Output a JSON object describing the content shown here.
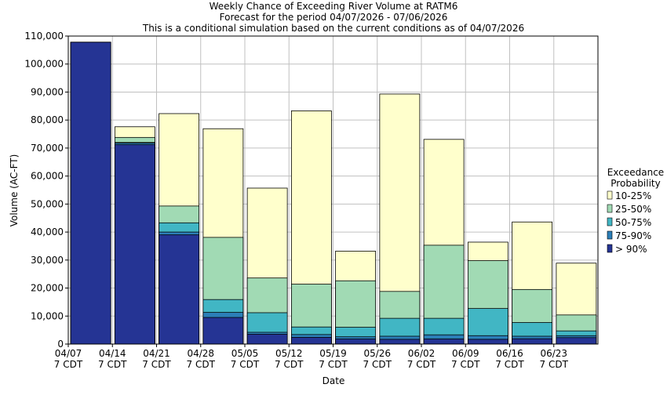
{
  "chart_data": {
    "type": "bar",
    "stacked": true,
    "title_lines": [
      "Weekly Chance of Exceeding River Volume at RATM6",
      "Forecast for the period 04/07/2026 - 07/06/2026",
      "This is a conditional simulation based on the current conditions as of 04/07/2026"
    ],
    "xlabel": "Date",
    "ylabel": "Volume (AC-FT)",
    "ylim": [
      0,
      110000
    ],
    "yticks": [
      0,
      10000,
      20000,
      30000,
      40000,
      50000,
      60000,
      70000,
      80000,
      90000,
      100000,
      110000
    ],
    "ytick_labels": [
      "0",
      "10,000",
      "20,000",
      "30,000",
      "40,000",
      "50,000",
      "60,000",
      "70,000",
      "80,000",
      "90,000",
      "100,000",
      "110,000"
    ],
    "xtick_labels": [
      [
        "04/07",
        "7 CDT"
      ],
      [
        "04/14",
        "7 CDT"
      ],
      [
        "04/21",
        "7 CDT"
      ],
      [
        "04/28",
        "7 CDT"
      ],
      [
        "05/05",
        "7 CDT"
      ],
      [
        "05/12",
        "7 CDT"
      ],
      [
        "05/19",
        "7 CDT"
      ],
      [
        "05/26",
        "7 CDT"
      ],
      [
        "06/02",
        "7 CDT"
      ],
      [
        "06/09",
        "7 CDT"
      ],
      [
        "06/16",
        "7 CDT"
      ],
      [
        "06/23",
        "7 CDT"
      ]
    ],
    "legend_title": [
      "Exceedance",
      "Probability"
    ],
    "legend": [
      {
        "label": "10-25%",
        "color": "#ffffcc"
      },
      {
        "label": "25-50%",
        "color": "#a1dab4"
      },
      {
        "label": "50-75%",
        "color": "#41b6c4"
      },
      {
        "label": "75-90%",
        "color": "#2c7fb8"
      },
      {
        "label": "> 90%",
        "color": "#253494"
      }
    ],
    "bars": [
      {
        "week": "04/07",
        "gt90": 107800,
        "p75_90": 107800,
        "p50_75": 107800,
        "p25_50": 107800,
        "p10_25": 107800
      },
      {
        "week": "04/14",
        "gt90": 71200,
        "p75_90": 71800,
        "p50_75": 72000,
        "p25_50": 73800,
        "p10_25": 77600
      },
      {
        "week": "04/21",
        "gt90": 39000,
        "p75_90": 40000,
        "p50_75": 43300,
        "p25_50": 49300,
        "p10_25": 82300
      },
      {
        "week": "04/28",
        "gt90": 9500,
        "p75_90": 11300,
        "p50_75": 15900,
        "p25_50": 38100,
        "p10_25": 76900
      },
      {
        "week": "05/05",
        "gt90": 3500,
        "p75_90": 4200,
        "p50_75": 11200,
        "p25_50": 23600,
        "p10_25": 55700
      },
      {
        "week": "05/12",
        "gt90": 2400,
        "p75_90": 3400,
        "p50_75": 6100,
        "p25_50": 21400,
        "p10_25": 83300
      },
      {
        "week": "05/19",
        "gt90": 1800,
        "p75_90": 2600,
        "p50_75": 6000,
        "p25_50": 22600,
        "p10_25": 33200
      },
      {
        "week": "05/26",
        "gt90": 1700,
        "p75_90": 2800,
        "p50_75": 9200,
        "p25_50": 18800,
        "p10_25": 89300
      },
      {
        "week": "06/02",
        "gt90": 1800,
        "p75_90": 3300,
        "p50_75": 9200,
        "p25_50": 35300,
        "p10_25": 73100
      },
      {
        "week": "06/09",
        "gt90": 1700,
        "p75_90": 3000,
        "p50_75": 12700,
        "p25_50": 29800,
        "p10_25": 36400
      },
      {
        "week": "06/16",
        "gt90": 1900,
        "p75_90": 2800,
        "p50_75": 7700,
        "p25_50": 19500,
        "p10_25": 43600
      },
      {
        "week": "06/23",
        "gt90": 2300,
        "p75_90": 3000,
        "p50_75": 4700,
        "p25_50": 10400,
        "p10_25": 28900
      }
    ]
  }
}
